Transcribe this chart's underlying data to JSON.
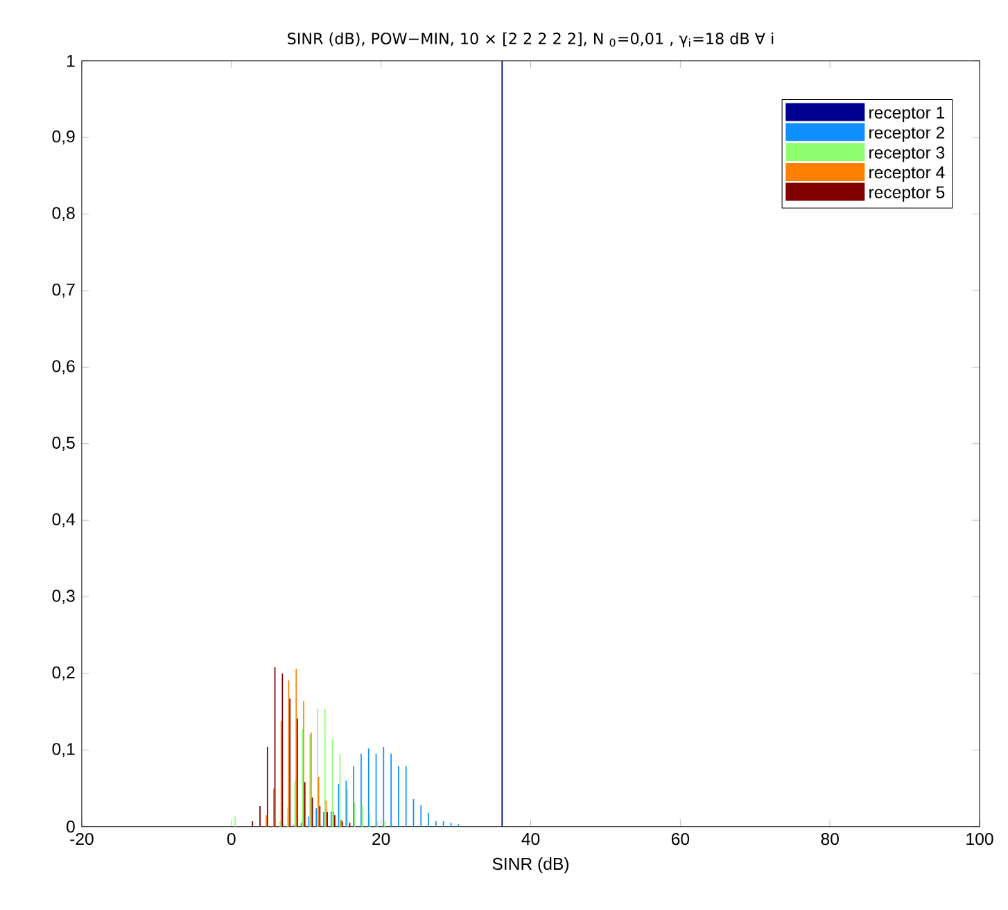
{
  "chart_data": {
    "type": "bar",
    "title": "SINR (dB), POW−MIN, 10 × [2 2 2 2 2], N $_{0}$=0,01 , γ$_{i}$=18 dB ∀ i",
    "xlabel": "SINR (dB)",
    "x": [
      0.5,
      1.5,
      2.5,
      3.5,
      4.5,
      5.5,
      6.5,
      7.5,
      8.5,
      9.5,
      10.5,
      11.5,
      12.5,
      13.5,
      14.5,
      15.5,
      16.5,
      17.5,
      18.5,
      19.5,
      20.5,
      21.5,
      22.5,
      23.5,
      24.5,
      25.5,
      26.5,
      27.5,
      28.5,
      29.5,
      30.5,
      31.5,
      32.5,
      33.5,
      34.5,
      35.5,
      36.5,
      37.5,
      38.5,
      39.5,
      40.5,
      41.5,
      42.5,
      43.5,
      44.5,
      45.5,
      46.5,
      47.5,
      48.5,
      49.5,
      50.5,
      51.5,
      52.5,
      53.5,
      54.5,
      55.5,
      56.5,
      57.5,
      58.5,
      59.5,
      60.5,
      61.5,
      62.5,
      63.5,
      64.5,
      65.5,
      66.5,
      67.5,
      68.5,
      69.5,
      70.5,
      71.5,
      72.5,
      73.5,
      74.5,
      75.5,
      76.5,
      77.5,
      78.5,
      79.5,
      80.5,
      81.5,
      82.5,
      83.5,
      84.5,
      85.5,
      86.5,
      87.5,
      88.5,
      89.5,
      90.5
    ],
    "series": [
      {
        "name": "receptor 1",
        "color": "#00008f",
        "values": [
          0,
          0,
          0,
          0,
          0,
          0,
          0,
          0,
          0,
          0,
          0,
          0,
          0,
          0,
          0,
          0,
          0,
          0,
          0,
          0,
          0,
          0,
          0,
          0,
          0,
          0,
          0,
          0,
          0,
          0,
          0,
          0,
          0,
          0,
          0,
          0,
          1,
          0,
          0,
          0,
          0,
          0,
          0,
          0,
          0,
          0,
          0,
          0,
          0,
          0,
          0,
          0,
          0,
          0,
          0,
          0,
          0,
          0,
          0,
          0,
          0,
          0,
          0,
          0,
          0,
          0,
          0,
          0,
          0,
          0,
          0,
          0,
          0,
          0,
          0,
          0,
          0,
          0,
          0,
          0,
          0,
          0,
          0,
          0,
          0,
          0,
          0,
          0,
          0,
          0,
          0
        ]
      },
      {
        "name": "receptor 2",
        "color": "#0f8fff",
        "values": [
          0,
          0,
          0,
          0,
          0,
          0,
          0,
          0,
          0.002,
          0.005,
          0.013,
          0.024,
          0.019,
          0.02,
          0.056,
          0.06,
          0.079,
          0.095,
          0.102,
          0.095,
          0.104,
          0.095,
          0.079,
          0.079,
          0.036,
          0.028,
          0.018,
          0.007,
          0.007,
          0.005,
          0.003,
          0,
          0,
          0,
          0,
          0,
          0,
          0,
          0,
          0,
          0,
          0,
          0,
          0,
          0,
          0,
          0,
          0,
          0,
          0,
          0,
          0,
          0,
          0,
          0,
          0,
          0,
          0,
          0,
          0,
          0,
          0,
          0,
          0,
          0,
          0,
          0,
          0,
          0,
          0,
          0,
          0,
          0,
          0,
          0,
          0,
          0,
          0,
          0,
          0,
          0,
          0,
          0,
          0,
          0,
          0,
          0,
          0,
          0,
          0,
          0
        ]
      },
      {
        "name": "receptor 3",
        "color": "#8fff70",
        "values": [
          0.013,
          0,
          0,
          0,
          0,
          0,
          0.007,
          0.025,
          0.06,
          0.127,
          0.12,
          0.154,
          0.154,
          0.115,
          0.095,
          0.049,
          0.031,
          0.029,
          0.017,
          0.008,
          0.007,
          0,
          0,
          0,
          0,
          0,
          0,
          0,
          0,
          0,
          0,
          0,
          0,
          0,
          0,
          0,
          0,
          0,
          0,
          0,
          0,
          0,
          0,
          0,
          0,
          0,
          0,
          0,
          0,
          0,
          0,
          0,
          0,
          0,
          0,
          0,
          0,
          0,
          0,
          0,
          0,
          0,
          0,
          0,
          0,
          0,
          0,
          0,
          0,
          0,
          0,
          0,
          0,
          0,
          0,
          0,
          0,
          0,
          0,
          0,
          0,
          0,
          0,
          0,
          0,
          0,
          0,
          0,
          0,
          0,
          0
        ]
      },
      {
        "name": "receptor 4",
        "color": "#ff7f00",
        "values": [
          0,
          0,
          0,
          0,
          0.015,
          0.05,
          0.138,
          0.191,
          0.206,
          0.164,
          0.123,
          0.065,
          0.034,
          0.019,
          0.009,
          0,
          0,
          0,
          0,
          0,
          0,
          0,
          0,
          0,
          0,
          0,
          0,
          0,
          0,
          0,
          0,
          0,
          0,
          0,
          0,
          0,
          0,
          0,
          0,
          0,
          0,
          0,
          0,
          0,
          0,
          0,
          0,
          0,
          0,
          0,
          0,
          0,
          0,
          0,
          0,
          0,
          0,
          0,
          0,
          0,
          0,
          0,
          0,
          0,
          0,
          0,
          0,
          0,
          0,
          0,
          0,
          0,
          0,
          0,
          0,
          0,
          0,
          0,
          0,
          0,
          0,
          0,
          0,
          0,
          0,
          0,
          0,
          0,
          0,
          0,
          0
        ]
      },
      {
        "name": "receptor 5",
        "color": "#800000",
        "values": [
          0,
          0,
          0.007,
          0.027,
          0.104,
          0.208,
          0.2,
          0.167,
          0.141,
          0.058,
          0.038,
          0.027,
          0.019,
          0.015,
          0.007,
          0.005,
          0,
          0,
          0,
          0,
          0,
          0,
          0,
          0,
          0,
          0,
          0,
          0,
          0,
          0,
          0,
          0,
          0,
          0,
          0,
          0,
          0,
          0,
          0,
          0,
          0,
          0,
          0,
          0,
          0,
          0,
          0,
          0,
          0,
          0,
          0,
          0,
          0,
          0,
          0,
          0,
          0,
          0,
          0,
          0,
          0,
          0,
          0,
          0,
          0,
          0,
          0,
          0,
          0,
          0,
          0,
          0,
          0,
          0,
          0,
          0,
          0,
          0,
          0,
          0,
          0,
          0,
          0,
          0,
          0,
          0,
          0,
          0,
          0,
          0,
          0
        ]
      }
    ],
    "xlim": [
      -20,
      100
    ],
    "xticks": [
      -20,
      0,
      20,
      40,
      60,
      80,
      100
    ],
    "ylim": [
      0,
      1
    ],
    "yticks": [
      0,
      {
        "value": 0.1,
        "label": "0,1"
      },
      {
        "value": 0.2,
        "label": "0,2"
      },
      {
        "value": 0.3,
        "label": "0,3"
      },
      {
        "value": 0.4,
        "label": "0,4"
      },
      {
        "value": 0.5,
        "label": "0,5"
      },
      {
        "value": 0.6,
        "label": "0,6"
      },
      {
        "value": 0.7,
        "label": "0,7"
      },
      {
        "value": 0.8,
        "label": "0,8"
      },
      {
        "value": 0.9,
        "label": "0,9"
      },
      1
    ],
    "legend": "top right"
  }
}
